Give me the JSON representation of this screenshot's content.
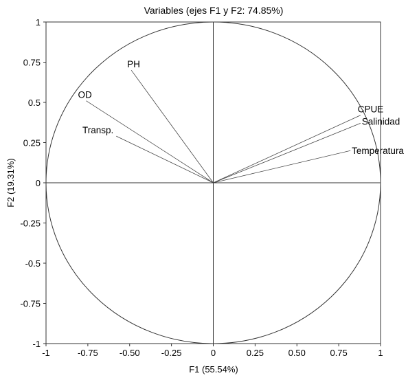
{
  "chart_data": {
    "type": "correlation-circle",
    "title": "Variables (ejes F1 y F2: 74.85%)",
    "xlabel": "F1 (55.54%)",
    "ylabel": "F2 (19.31%)",
    "xlim": [
      -1,
      1
    ],
    "ylim": [
      -1,
      1
    ],
    "x_ticks": [
      "-1",
      "-0.75",
      "-0.50",
      "-0.25",
      "0",
      "0.25",
      "0.50",
      "0.75",
      "1"
    ],
    "y_ticks": [
      "1",
      "0.75",
      "0.5",
      "0.25",
      "0",
      "-0.25",
      "-0.5",
      "-0.75",
      "-1"
    ],
    "grid": false,
    "unit_circle": true,
    "variables": [
      {
        "name": "CPUE",
        "x": 0.88,
        "y": 0.42
      },
      {
        "name": "Salinidad",
        "x": 0.88,
        "y": 0.37
      },
      {
        "name": "Temperatura",
        "x": 0.82,
        "y": 0.2
      },
      {
        "name": "PH",
        "x": -0.49,
        "y": 0.7
      },
      {
        "name": "OD",
        "x": -0.76,
        "y": 0.51
      },
      {
        "name": "Transp.",
        "x": -0.58,
        "y": 0.29
      }
    ]
  }
}
